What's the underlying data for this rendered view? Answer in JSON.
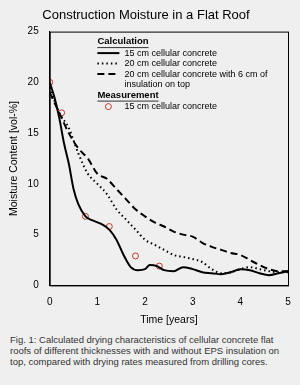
{
  "chart_data": {
    "type": "line",
    "title": "Construction Moisture in a Flat Roof",
    "caption": "Fig. 1: Calculated drying characteristics of cellular concrete flat roofs of different thicknesses with and without EPS insulation on top, compared with drying rates measured from drilling cores.",
    "xlabel": "Time [years]",
    "ylabel": "Moisture Content [vol-%]",
    "legend_headings": [
      "Calculation",
      "Measurement"
    ],
    "xlim": [
      0,
      5
    ],
    "xticks": [
      0,
      1,
      2,
      3,
      4,
      5
    ],
    "ylim": [
      0,
      25
    ],
    "yticks": [
      0,
      5,
      10,
      15,
      20,
      25
    ],
    "grid": false,
    "series": [
      {
        "name": "15 cm cellular concrete",
        "color": "#000000",
        "line_style": "solid",
        "x": [
          0,
          0.1,
          0.2,
          0.3,
          0.4,
          0.5,
          0.6,
          0.75,
          0.9,
          1.1,
          1.25,
          1.4,
          1.55,
          1.7,
          1.85,
          2,
          2.1,
          2.25,
          2.4,
          2.6,
          2.8,
          3,
          3.2,
          3.4,
          3.6,
          3.8,
          4,
          4.2,
          4.4,
          4.6,
          4.8,
          5
        ],
        "values": [
          20,
          18.5,
          16.5,
          14,
          12,
          9.5,
          8,
          6.8,
          6.4,
          6,
          5.5,
          4.5,
          3,
          1.8,
          1.5,
          1.6,
          2,
          1.9,
          1.5,
          1.4,
          1.8,
          1.6,
          1.3,
          1.2,
          1.1,
          1.3,
          1.6,
          1.5,
          1.2,
          1,
          1.2,
          1.4
        ]
      },
      {
        "name": "20 cm cellular concrete",
        "color": "#000000",
        "line_style": "dotted",
        "x": [
          0,
          0.2,
          0.4,
          0.6,
          0.8,
          1,
          1.2,
          1.4,
          1.6,
          1.8,
          2,
          2.2,
          2.4,
          2.6,
          2.8,
          3,
          3.2,
          3.4,
          3.6,
          3.8,
          4,
          4.2,
          4.4,
          4.6,
          4.8,
          5
        ],
        "values": [
          19.5,
          17,
          15.5,
          13,
          11,
          10,
          9,
          7.5,
          6.5,
          5.5,
          4.5,
          4,
          3.5,
          3,
          2.8,
          2.6,
          2.3,
          1.6,
          1.2,
          1.3,
          1.6,
          1.8,
          1.6,
          1.4,
          1.3,
          1.3
        ]
      },
      {
        "name": "20 cm cellular concrete with 6 cm of insulation on top",
        "color": "#000000",
        "line_style": "dashed",
        "x": [
          0,
          0.2,
          0.4,
          0.6,
          0.8,
          1,
          1.2,
          1.4,
          1.6,
          1.8,
          2,
          2.2,
          2.4,
          2.6,
          2.8,
          3,
          3.2,
          3.4,
          3.6,
          3.8,
          4,
          4.2,
          4.4,
          4.6,
          4.8,
          5
        ],
        "values": [
          19,
          17,
          15,
          13.5,
          12.5,
          11,
          10.5,
          9.5,
          8.5,
          7.5,
          6.8,
          6.2,
          5.8,
          5.3,
          5,
          4.8,
          4.2,
          3.8,
          3.5,
          3.2,
          3,
          2.5,
          2,
          1.6,
          1.4,
          1.4
        ]
      },
      {
        "name": "15 cm cellular concrete",
        "type": "scatter",
        "marker": "circle",
        "color": "#c0392b",
        "x": [
          0,
          0.25,
          0.75,
          1.25,
          1.8,
          2.3
        ],
        "values": [
          20,
          17,
          6.8,
          5.8,
          2.9,
          1.9
        ]
      }
    ]
  }
}
